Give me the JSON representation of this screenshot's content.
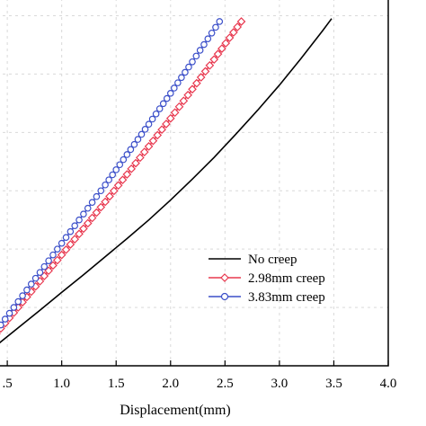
{
  "chart_data": {
    "type": "line",
    "title": "",
    "xlabel": "Displacement(mm)",
    "ylabel": "",
    "xlim": [
      0.4,
      4.0
    ],
    "ylim": [
      0,
      6.3
    ],
    "x_ticks": [
      0.5,
      1.0,
      1.5,
      2.0,
      2.5,
      3.0,
      3.5,
      4.0
    ],
    "x_tick_labels": [
      ".5",
      "1.0",
      "1.5",
      "2.0",
      "2.5",
      "3.0",
      "3.5",
      "4.0"
    ],
    "y_grid_values": [
      0,
      1,
      2,
      3,
      4,
      5,
      6
    ],
    "grid": true,
    "legend_position": "lower-right",
    "series": [
      {
        "name": "No creep",
        "color": "#000000",
        "marker": "none",
        "x": [
          0.4,
          0.6,
          0.8,
          1.0,
          1.2,
          1.4,
          1.6,
          1.8,
          2.0,
          2.2,
          2.4,
          2.6,
          2.8,
          3.0,
          3.2,
          3.4,
          3.48
        ],
        "y": [
          0.35,
          0.65,
          0.95,
          1.26,
          1.56,
          1.87,
          2.18,
          2.5,
          2.84,
          3.2,
          3.57,
          3.97,
          4.38,
          4.81,
          5.27,
          5.75,
          5.95
        ]
      },
      {
        "name": "2.98mm creep",
        "color": "#e8384f",
        "marker": "diamond",
        "x": [
          0.4,
          0.6,
          0.8,
          1.0,
          1.2,
          1.4,
          1.6,
          1.8,
          2.0,
          2.2,
          2.4,
          2.65
        ],
        "y": [
          0.55,
          1.0,
          1.45,
          1.9,
          2.35,
          2.81,
          3.28,
          3.76,
          4.24,
          4.74,
          5.25,
          5.9
        ]
      },
      {
        "name": "3.83mm creep",
        "color": "#3b4fc9",
        "marker": "circle",
        "x": [
          0.4,
          0.6,
          0.8,
          1.0,
          1.2,
          1.4,
          1.6,
          1.8,
          2.0,
          2.2,
          2.45
        ],
        "y": [
          0.6,
          1.1,
          1.6,
          2.1,
          2.6,
          3.1,
          3.62,
          4.14,
          4.67,
          5.21,
          5.9
        ]
      }
    ]
  }
}
